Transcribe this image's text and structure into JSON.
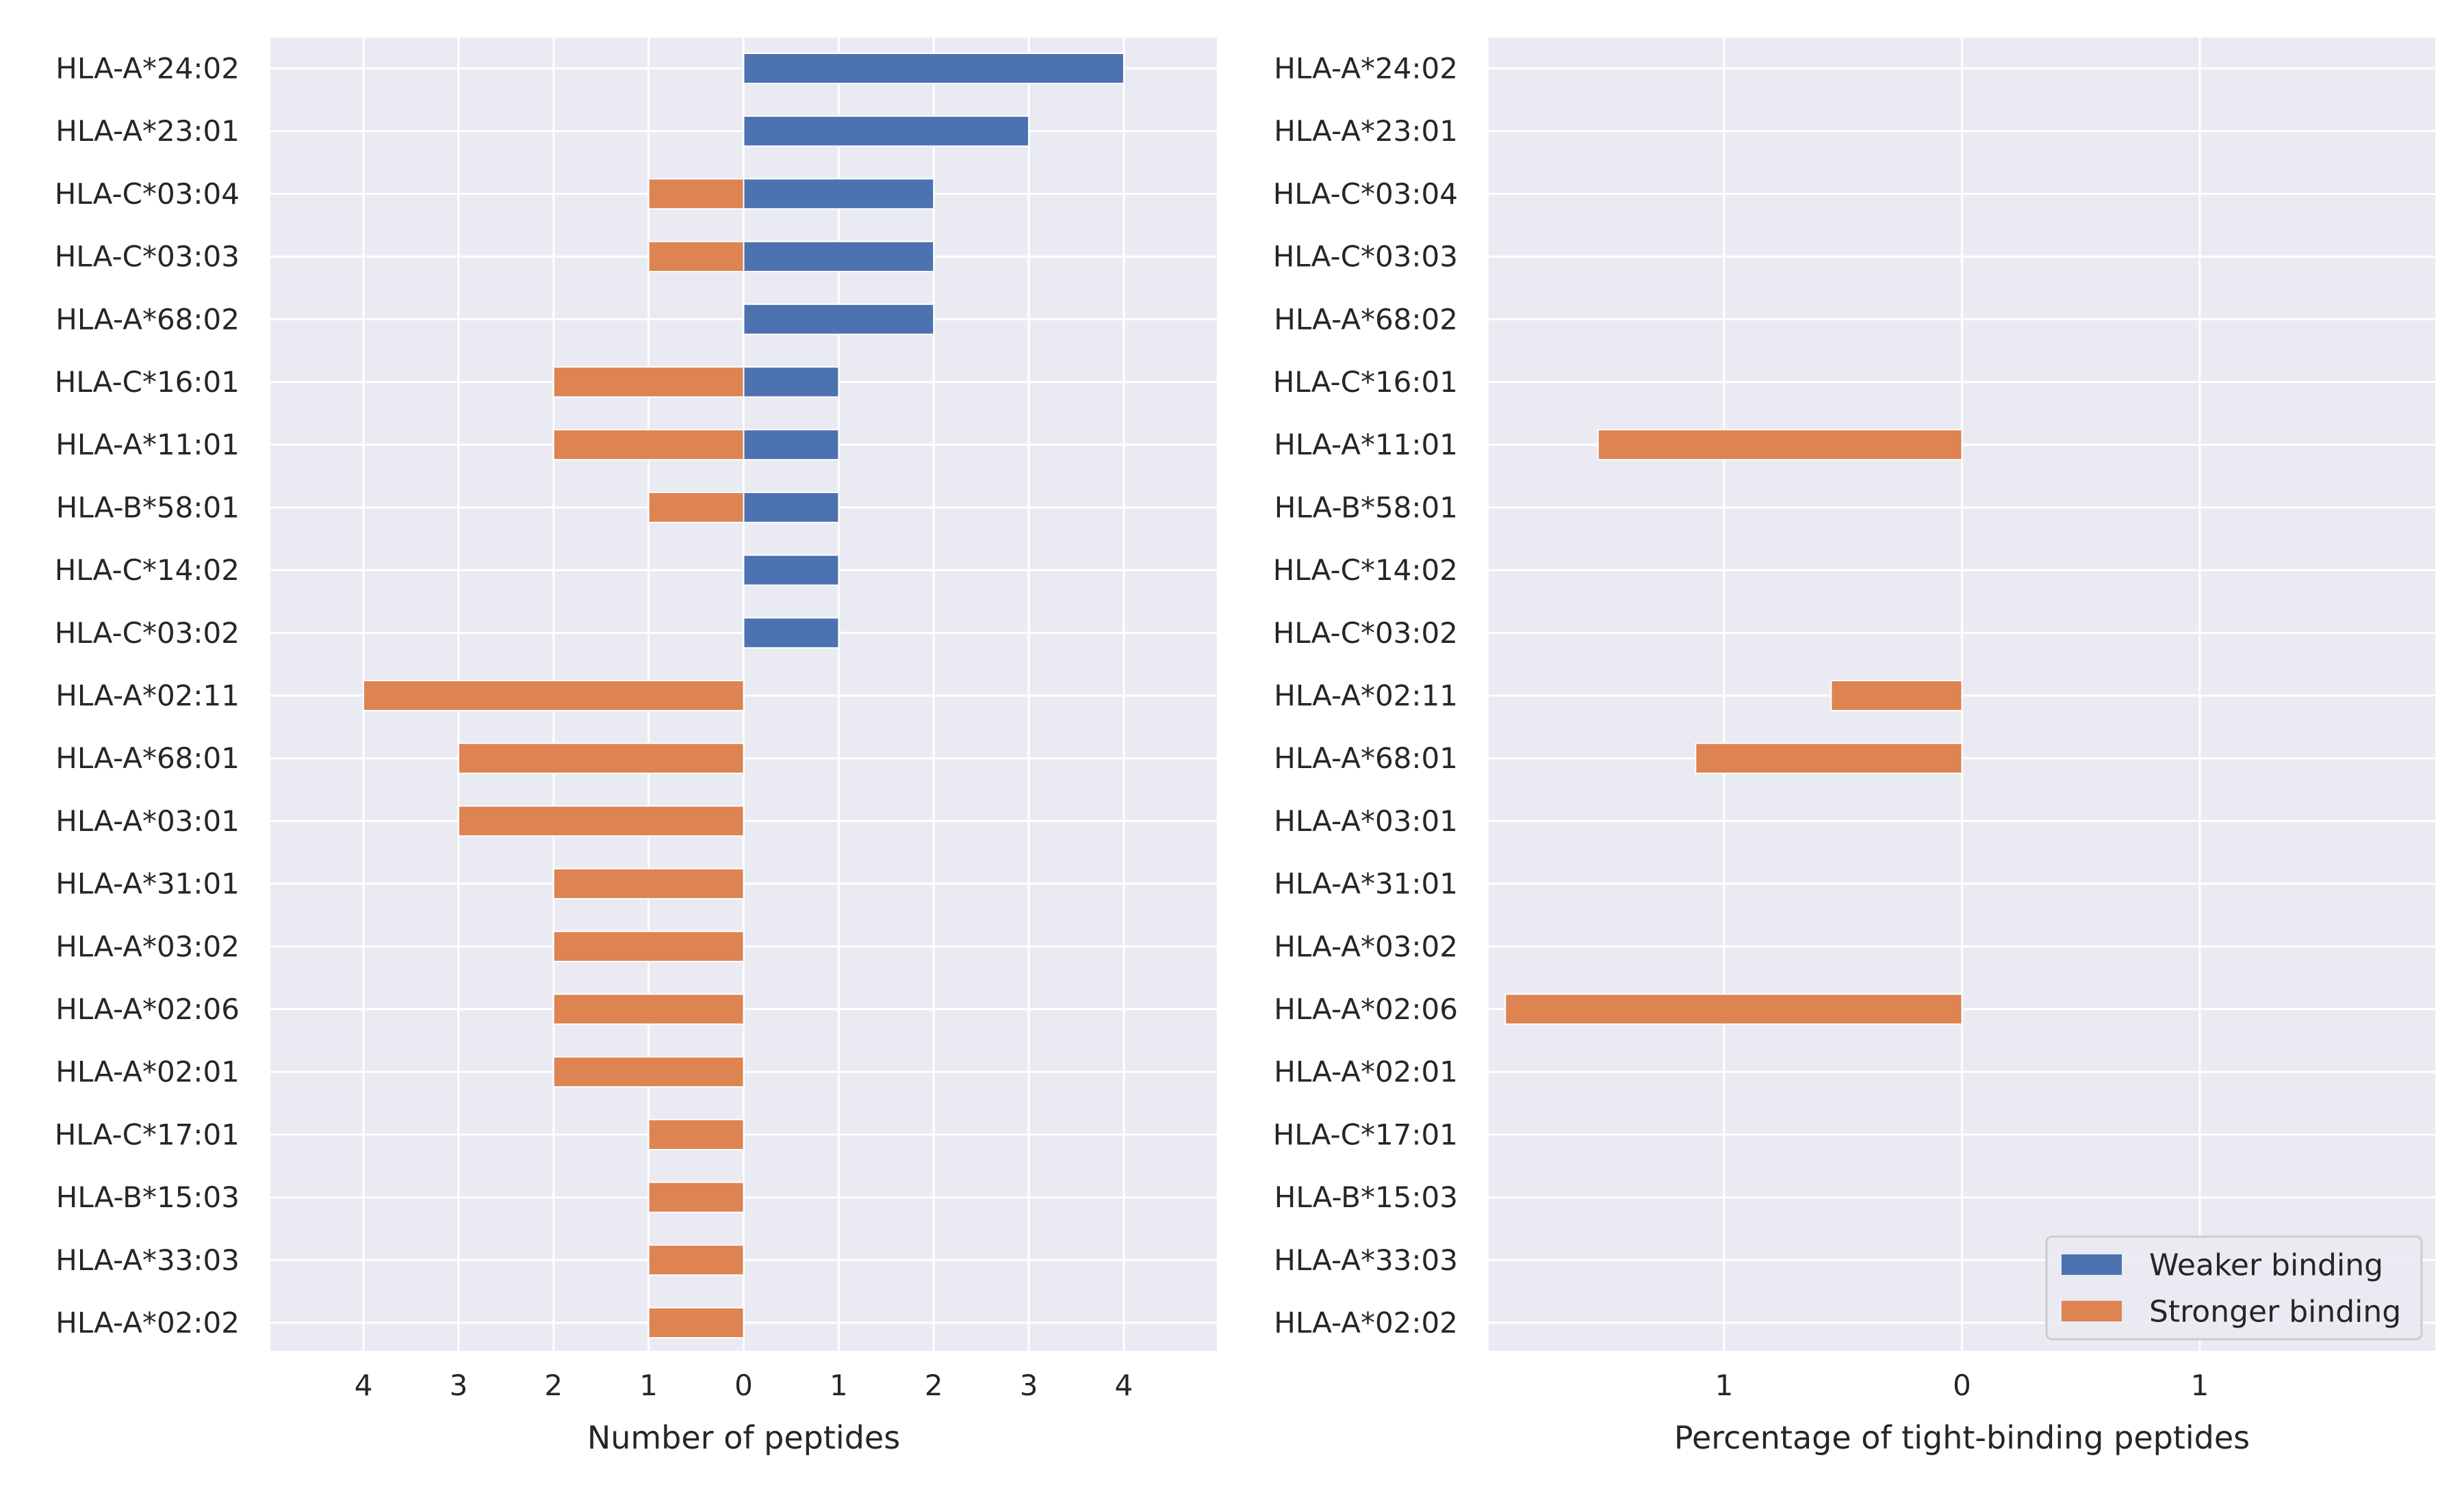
{
  "chart_data": [
    {
      "type": "bar",
      "orientation": "horizontal-diverging",
      "xlabel": "Number of peptides",
      "ylabel": "",
      "xlim": [
        -4.98,
        4.98
      ],
      "xticks": [
        -4,
        -3,
        -2,
        -1,
        0,
        1,
        2,
        3,
        4
      ],
      "xtick_labels": [
        "4",
        "3",
        "2",
        "1",
        "0",
        "1",
        "2",
        "3",
        "4"
      ],
      "grid": true,
      "categories": [
        "HLA-A*24:02",
        "HLA-A*23:01",
        "HLA-C*03:04",
        "HLA-C*03:03",
        "HLA-A*68:02",
        "HLA-C*16:01",
        "HLA-A*11:01",
        "HLA-B*58:01",
        "HLA-C*14:02",
        "HLA-C*03:02",
        "HLA-A*02:11",
        "HLA-A*68:01",
        "HLA-A*03:01",
        "HLA-A*31:01",
        "HLA-A*03:02",
        "HLA-A*02:06",
        "HLA-A*02:01",
        "HLA-C*17:01",
        "HLA-B*15:03",
        "HLA-A*33:03",
        "HLA-A*02:02"
      ],
      "series": [
        {
          "name": "Weaker binding",
          "color": "#4c72b0",
          "direction": "right",
          "values": [
            4,
            3,
            2,
            2,
            2,
            1,
            1,
            1,
            1,
            1,
            0,
            0,
            0,
            0,
            0,
            0,
            0,
            0,
            0,
            0,
            0
          ]
        },
        {
          "name": "Stronger binding",
          "color": "#dd8452",
          "direction": "left",
          "values": [
            0,
            0,
            1,
            1,
            0,
            2,
            2,
            1,
            0,
            0,
            4,
            3,
            3,
            2,
            2,
            2,
            2,
            1,
            1,
            1,
            1
          ]
        }
      ]
    },
    {
      "type": "bar",
      "orientation": "horizontal-diverging",
      "xlabel": "Percentage of tight-binding peptides",
      "ylabel": "",
      "xlim": [
        -1.99,
        1.99
      ],
      "xticks": [
        -1,
        0,
        1
      ],
      "xtick_labels": [
        "1",
        "0",
        "1"
      ],
      "grid": true,
      "legend_position": "bottom-right",
      "categories": [
        "HLA-A*24:02",
        "HLA-A*23:01",
        "HLA-C*03:04",
        "HLA-C*03:03",
        "HLA-A*68:02",
        "HLA-C*16:01",
        "HLA-A*11:01",
        "HLA-B*58:01",
        "HLA-C*14:02",
        "HLA-C*03:02",
        "HLA-A*02:11",
        "HLA-A*68:01",
        "HLA-A*03:01",
        "HLA-A*31:01",
        "HLA-A*03:02",
        "HLA-A*02:06",
        "HLA-A*02:01",
        "HLA-C*17:01",
        "HLA-B*15:03",
        "HLA-A*33:03",
        "HLA-A*02:02"
      ],
      "series": [
        {
          "name": "Weaker binding",
          "color": "#4c72b0",
          "direction": "right",
          "values": [
            0,
            0,
            0,
            0,
            0,
            0,
            0,
            0,
            0,
            0,
            0,
            0,
            0,
            0,
            0,
            0,
            0,
            0,
            0,
            0,
            0
          ]
        },
        {
          "name": "Stronger binding",
          "color": "#dd8452",
          "direction": "left",
          "values": [
            0,
            0,
            0,
            0,
            0,
            0,
            1.53,
            0,
            0,
            0,
            0.55,
            1.12,
            0,
            0,
            0,
            1.92,
            0,
            0,
            0,
            0,
            0
          ]
        }
      ]
    }
  ],
  "legend": {
    "entries": [
      {
        "label": "Weaker binding",
        "color": "#4c72b0"
      },
      {
        "label": "Stronger binding",
        "color": "#dd8452"
      }
    ]
  }
}
